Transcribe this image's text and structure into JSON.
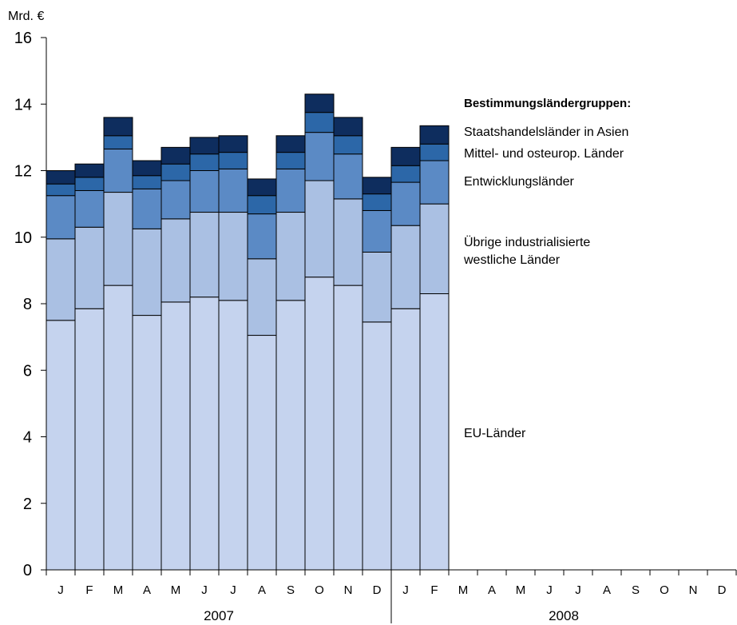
{
  "chart_data": {
    "type": "bar",
    "stacked": true,
    "unit_label": "Mrd. €",
    "ylim": [
      0,
      16
    ],
    "yticks": [
      0,
      2,
      4,
      6,
      8,
      10,
      12,
      14,
      16
    ],
    "month_labels": [
      "J",
      "F",
      "M",
      "A",
      "M",
      "J",
      "J",
      "A",
      "S",
      "O",
      "N",
      "D",
      "J",
      "F",
      "M",
      "A",
      "M",
      "J",
      "J",
      "A",
      "S",
      "O",
      "N",
      "D"
    ],
    "years": [
      {
        "label": "2007",
        "start_index": 0,
        "count": 12
      },
      {
        "label": "2008",
        "start_index": 12,
        "count": 12
      }
    ],
    "legend_title": "Bestimmungsländergruppen:",
    "series": [
      {
        "name": "EU-Länder",
        "color": "#c5d3ee",
        "values": [
          7.5,
          7.85,
          8.55,
          7.65,
          8.05,
          8.2,
          8.1,
          7.05,
          8.1,
          8.8,
          8.55,
          7.45,
          7.85,
          8.3
        ]
      },
      {
        "name": "Übrige industrialisierte westliche Länder",
        "color": "#aac0e3",
        "values": [
          2.45,
          2.45,
          2.8,
          2.6,
          2.5,
          2.55,
          2.65,
          2.3,
          2.65,
          2.9,
          2.6,
          2.1,
          2.5,
          2.7
        ]
      },
      {
        "name": "Entwicklungsländer",
        "color": "#5b8ac5",
        "values": [
          1.3,
          1.1,
          1.3,
          1.2,
          1.15,
          1.25,
          1.3,
          1.35,
          1.3,
          1.45,
          1.35,
          1.25,
          1.3,
          1.3
        ]
      },
      {
        "name": "Mittel- und osteurop. Länder",
        "color": "#2c67a8",
        "values": [
          0.35,
          0.4,
          0.4,
          0.4,
          0.5,
          0.5,
          0.5,
          0.55,
          0.5,
          0.6,
          0.55,
          0.5,
          0.5,
          0.5
        ]
      },
      {
        "name": "Staatshandelsländer in Asien",
        "color": "#0e2d5e",
        "values": [
          0.4,
          0.4,
          0.55,
          0.45,
          0.5,
          0.5,
          0.5,
          0.5,
          0.5,
          0.55,
          0.55,
          0.5,
          0.55,
          0.55
        ]
      }
    ]
  }
}
